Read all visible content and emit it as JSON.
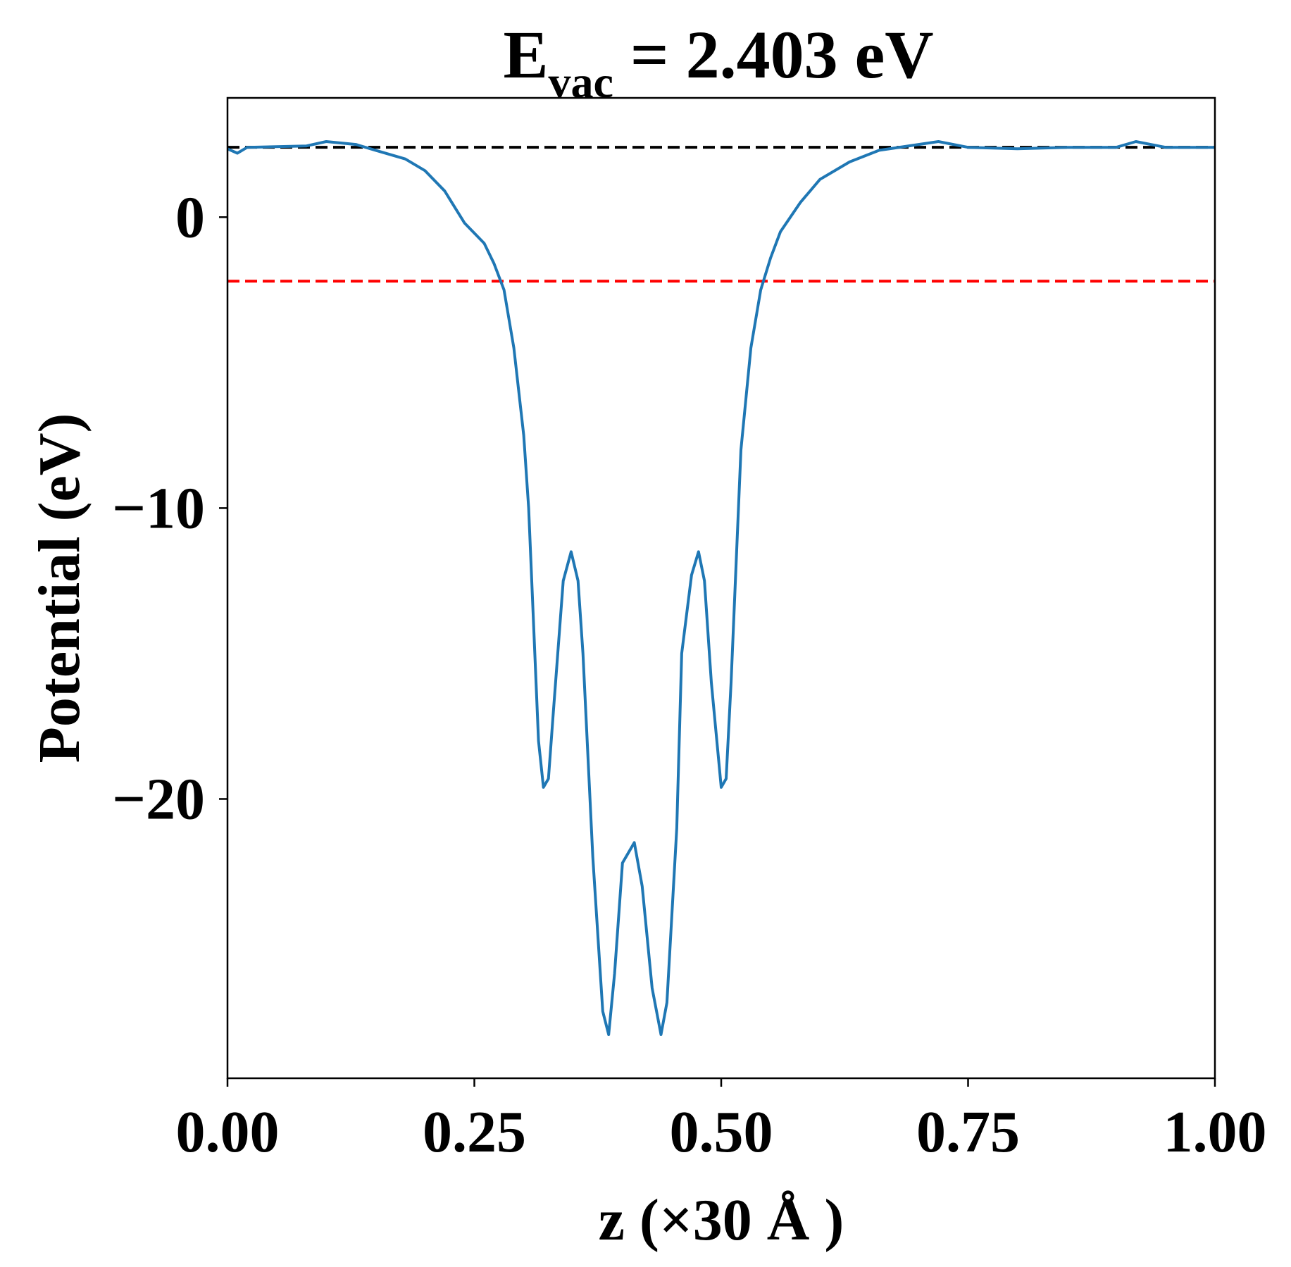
{
  "chart_data": {
    "type": "line",
    "title": "E",
    "title_sub": "vac",
    "title_rest": " = 2.403 eV",
    "xlabel": "z (×30 Å )",
    "ylabel": "Potential (eV)",
    "xlim": [
      0,
      1
    ],
    "ylim": [
      -29.6,
      4.1
    ],
    "xticks": [
      0,
      0.25,
      0.5,
      0.75,
      1.0
    ],
    "xtick_labels": [
      "0.00",
      "0.25",
      "0.50",
      "0.75",
      "1.00"
    ],
    "yticks": [
      0,
      -10,
      -20
    ],
    "ytick_labels": [
      "0",
      "−10",
      "−20"
    ],
    "grid": false,
    "colors": {
      "series": "#1f77b4",
      "vacuum_line": "#000000",
      "fermi_line": "#ff0000"
    },
    "hlines": [
      {
        "y": 2.403,
        "color": "#000000",
        "style": "dashed"
      },
      {
        "y": -2.2,
        "color": "#ff0000",
        "style": "dashed"
      }
    ],
    "series": [
      {
        "x": [
          0.0,
          0.01,
          0.02,
          0.08,
          0.1,
          0.13,
          0.15,
          0.18,
          0.2,
          0.22,
          0.24,
          0.26,
          0.27,
          0.28,
          0.29,
          0.3,
          0.305,
          0.31,
          0.315,
          0.32,
          0.325,
          0.33,
          0.34,
          0.348,
          0.355,
          0.36,
          0.37,
          0.38,
          0.386,
          0.392,
          0.4,
          0.412,
          0.42,
          0.43,
          0.439,
          0.445,
          0.455,
          0.46,
          0.47,
          0.477,
          0.483,
          0.49,
          0.5,
          0.505,
          0.51,
          0.515,
          0.52,
          0.53,
          0.54,
          0.55,
          0.56,
          0.58,
          0.6,
          0.63,
          0.66,
          0.7,
          0.72,
          0.75,
          0.8,
          0.85,
          0.9,
          0.92,
          0.95,
          1.0
        ],
        "y": [
          2.35,
          2.2,
          2.4,
          2.45,
          2.6,
          2.5,
          2.3,
          2.0,
          1.6,
          0.9,
          -0.2,
          -0.9,
          -1.6,
          -2.5,
          -4.5,
          -7.5,
          -10,
          -14,
          -18,
          -19.6,
          -19.3,
          -17,
          -12.5,
          -11.5,
          -12.5,
          -15,
          -22,
          -27.3,
          -28.1,
          -26,
          -22.2,
          -21.5,
          -23,
          -26.5,
          -28.1,
          -27,
          -21,
          -15,
          -12.3,
          -11.5,
          -12.5,
          -16,
          -19.6,
          -19.3,
          -16,
          -12,
          -8,
          -4.5,
          -2.5,
          -1.4,
          -0.5,
          0.5,
          1.3,
          1.9,
          2.3,
          2.5,
          2.6,
          2.4,
          2.35,
          2.4,
          2.4,
          2.6,
          2.4,
          2.4
        ]
      }
    ]
  }
}
